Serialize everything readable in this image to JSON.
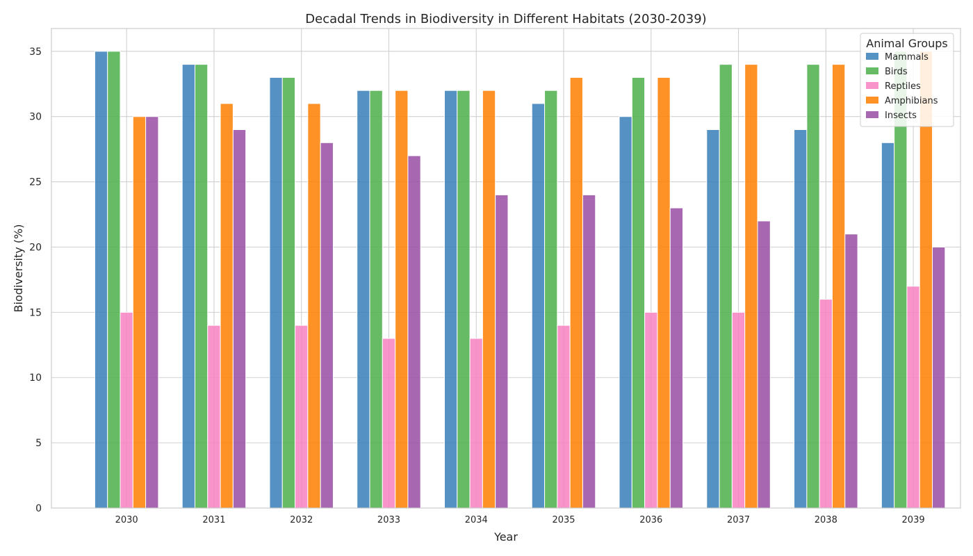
{
  "chart_data": {
    "type": "bar",
    "title": "Decadal Trends in Biodiversity in Different Habitats (2030-2039)",
    "xlabel": "Year",
    "ylabel": "Biodiversity (%)",
    "categories": [
      "2030",
      "2031",
      "2032",
      "2033",
      "2034",
      "2035",
      "2036",
      "2037",
      "2038",
      "2039"
    ],
    "ylim": [
      0,
      36.75
    ],
    "yticks": [
      0,
      5,
      10,
      15,
      20,
      25,
      30,
      35
    ],
    "grid": true,
    "legend_title": "Animal Groups",
    "legend_position": "top-right",
    "series": [
      {
        "name": "Mammals",
        "color": "#377eb8",
        "values": [
          35,
          34,
          33,
          32,
          32,
          31,
          30,
          29,
          29,
          28
        ]
      },
      {
        "name": "Birds",
        "color": "#4daf4a",
        "values": [
          35,
          34,
          33,
          32,
          32,
          32,
          33,
          34,
          34,
          35
        ]
      },
      {
        "name": "Reptiles",
        "color": "#f781bf",
        "values": [
          15,
          14,
          14,
          13,
          13,
          14,
          15,
          15,
          16,
          17
        ]
      },
      {
        "name": "Amphibians",
        "color": "#ff7f00",
        "values": [
          30,
          31,
          31,
          32,
          32,
          33,
          33,
          34,
          34,
          35
        ]
      },
      {
        "name": "Insects",
        "color": "#984ea3",
        "values": [
          30,
          29,
          28,
          27,
          24,
          24,
          23,
          22,
          21,
          20
        ]
      }
    ]
  }
}
